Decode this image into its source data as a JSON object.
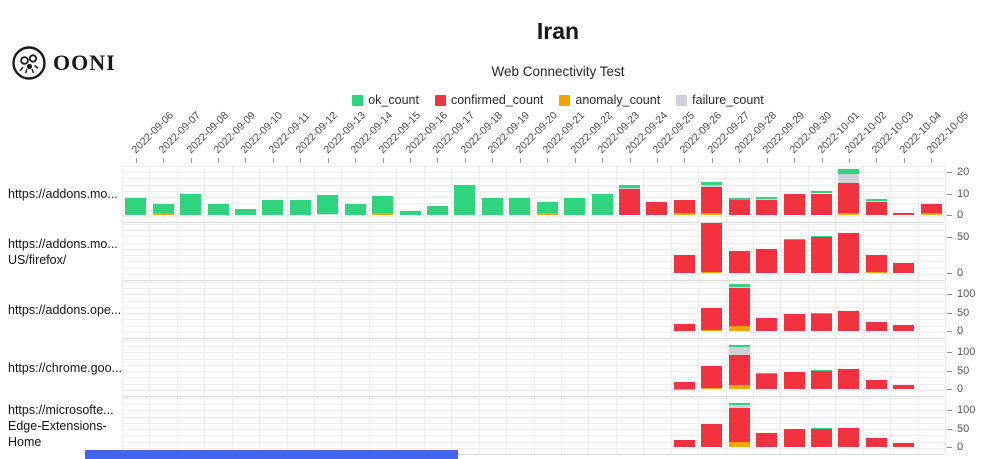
{
  "header": {
    "logo_text": "OONI",
    "title": "Iran",
    "subtitle": "Web Connectivity Test"
  },
  "legend": [
    {
      "label": "ok_count",
      "color": "#2ed47e"
    },
    {
      "label": "confirmed_count",
      "color": "#f2333f"
    },
    {
      "label": "anomaly_count",
      "color": "#f0a500"
    },
    {
      "label": "failure_count",
      "color": "#ccd3da"
    }
  ],
  "bottom_bar": {
    "color": "#4263eb"
  },
  "chart_data": {
    "type": "bar",
    "stacked": true,
    "grid": true,
    "legend_position": "top-center",
    "stack_order": [
      "anomaly_count",
      "confirmed_count",
      "failure_count",
      "ok_count"
    ],
    "colors": {
      "ok_count": "#2ed47e",
      "confirmed_count": "#f2333f",
      "anomaly_count": "#f0a500",
      "failure_count": "#ccd3da"
    },
    "x": [
      "2022-09-06",
      "2022-09-07",
      "2022-09-08",
      "2022-09-09",
      "2022-09-10",
      "2022-09-11",
      "2022-09-12",
      "2022-09-13",
      "2022-09-14",
      "2022-09-15",
      "2022-09-16",
      "2022-09-17",
      "2022-09-18",
      "2022-09-19",
      "2022-09-20",
      "2022-09-21",
      "2022-09-22",
      "2022-09-23",
      "2022-09-24",
      "2022-09-25",
      "2022-09-26",
      "2022-09-27",
      "2022-09-28",
      "2022-09-29",
      "2022-09-30",
      "2022-10-01",
      "2022-10-02",
      "2022-10-03",
      "2022-10-04",
      "2022-10-05"
    ],
    "rows": [
      {
        "label": "https://addons.mo...",
        "label_lines": [
          "https://addons.mo..."
        ],
        "y_ticks": [
          0,
          10,
          20
        ],
        "series": {
          "anomaly_count": [
            0,
            1,
            0,
            0,
            0,
            0,
            0,
            0,
            0,
            1,
            0,
            0,
            0,
            0,
            0,
            1,
            0,
            0,
            0,
            0,
            1,
            1,
            0,
            0,
            0,
            0,
            1,
            0,
            0,
            1
          ],
          "confirmed_count": [
            0,
            0,
            0,
            0,
            0,
            0,
            0,
            0,
            0,
            0,
            0,
            0,
            0,
            0,
            0,
            0,
            0,
            0,
            12,
            6,
            6,
            12,
            7,
            7,
            10,
            10,
            14,
            6,
            1,
            4
          ],
          "failure_count": [
            0,
            0,
            0,
            0,
            0,
            0,
            0,
            0.5,
            0,
            0,
            0,
            0,
            0,
            0,
            0,
            0,
            0,
            0,
            0.5,
            0,
            0,
            1,
            0,
            0.5,
            0,
            0,
            4,
            0.5,
            0,
            0
          ],
          "ok_count": [
            8,
            4,
            10,
            5,
            3,
            7,
            7,
            9,
            5,
            8,
            2,
            4,
            14,
            8,
            8,
            5,
            8,
            10,
            1.5,
            0,
            0,
            1.5,
            1,
            1,
            0,
            1,
            2.5,
            1,
            0,
            0
          ]
        }
      },
      {
        "label": "https://addons.mo... US/firefox/",
        "label_lines": [
          "https://addons.mo...",
          "US/firefox/"
        ],
        "y_ticks": [
          0,
          50
        ],
        "series": {
          "anomaly_count": [
            0,
            0,
            0,
            0,
            0,
            0,
            0,
            0,
            0,
            0,
            0,
            0,
            0,
            0,
            0,
            0,
            0,
            0,
            0,
            0,
            0,
            2,
            0,
            0,
            0,
            0,
            0,
            1,
            0,
            0
          ],
          "confirmed_count": [
            0,
            0,
            0,
            0,
            0,
            0,
            0,
            0,
            0,
            0,
            0,
            0,
            0,
            0,
            0,
            0,
            0,
            0,
            0,
            0,
            25,
            68,
            30,
            33,
            46,
            50,
            55,
            24,
            14,
            0
          ],
          "failure_count": [
            0,
            0,
            0,
            0,
            0,
            0,
            0,
            0,
            0,
            0,
            0,
            0,
            0,
            0,
            0,
            0,
            0,
            0,
            0,
            0,
            0,
            0,
            0,
            0,
            0,
            0,
            0,
            0,
            0,
            0
          ],
          "ok_count": [
            0,
            0,
            0,
            0,
            0,
            0,
            0,
            0,
            0,
            0,
            0,
            0,
            0,
            0,
            0,
            0,
            0,
            0,
            0,
            0,
            0,
            0,
            0,
            0,
            1.5,
            2,
            0,
            0,
            0,
            0
          ]
        }
      },
      {
        "label": "https://addons.ope...",
        "label_lines": [
          "https://addons.ope..."
        ],
        "y_ticks": [
          0,
          50,
          100
        ],
        "series": {
          "anomaly_count": [
            0,
            0,
            0,
            0,
            0,
            0,
            0,
            0,
            0,
            0,
            0,
            0,
            0,
            0,
            0,
            0,
            0,
            0,
            0,
            0,
            0,
            3,
            13,
            0,
            0,
            0,
            0,
            0,
            0,
            0
          ],
          "confirmed_count": [
            0,
            0,
            0,
            0,
            0,
            0,
            0,
            0,
            0,
            0,
            0,
            0,
            0,
            0,
            0,
            0,
            0,
            0,
            0,
            0,
            20,
            60,
            103,
            35,
            47,
            47,
            55,
            25,
            15,
            0
          ],
          "failure_count": [
            0,
            0,
            0,
            0,
            0,
            0,
            0,
            0,
            0,
            0,
            0,
            0,
            0,
            0,
            0,
            0,
            0,
            0,
            0,
            0,
            0,
            0,
            4,
            0,
            0,
            0,
            0,
            0,
            0,
            0
          ],
          "ok_count": [
            0,
            0,
            0,
            0,
            0,
            0,
            0,
            0,
            0,
            0,
            0,
            0,
            0,
            0,
            0,
            0,
            0,
            0,
            0,
            0,
            0,
            0,
            6,
            0,
            0,
            2,
            0,
            0,
            0,
            0
          ]
        }
      },
      {
        "label": "https://chrome.goo...",
        "label_lines": [
          "https://chrome.goo..."
        ],
        "y_ticks": [
          0,
          50,
          100
        ],
        "series": {
          "anomaly_count": [
            0,
            0,
            0,
            0,
            0,
            0,
            0,
            0,
            0,
            0,
            0,
            0,
            0,
            0,
            0,
            0,
            0,
            0,
            0,
            0,
            1,
            2,
            11,
            0,
            0,
            0,
            0,
            0,
            0,
            0
          ],
          "confirmed_count": [
            0,
            0,
            0,
            0,
            0,
            0,
            0,
            0,
            0,
            0,
            0,
            0,
            0,
            0,
            0,
            0,
            0,
            0,
            0,
            0,
            18,
            60,
            80,
            40,
            47,
            49,
            55,
            24,
            12,
            0
          ],
          "failure_count": [
            0,
            0,
            0,
            0,
            0,
            0,
            0,
            0,
            0,
            0,
            0,
            0,
            0,
            0,
            0,
            0,
            0,
            0,
            0,
            0,
            0,
            0,
            22,
            0,
            0,
            0,
            0,
            0,
            0,
            0
          ],
          "ok_count": [
            0,
            0,
            0,
            0,
            0,
            0,
            0,
            0,
            0,
            0,
            0,
            0,
            0,
            0,
            0,
            0,
            0,
            0,
            0,
            0,
            0,
            0,
            6,
            2,
            0,
            2,
            0,
            0,
            0,
            0
          ]
        }
      },
      {
        "label": "https://microsofte... Edge-Extensions-Home",
        "label_lines": [
          "https://microsofte...",
          "Edge-Extensions-",
          "Home"
        ],
        "y_ticks": [
          0,
          50,
          100
        ],
        "series": {
          "anomaly_count": [
            0,
            0,
            0,
            0,
            0,
            0,
            0,
            0,
            0,
            0,
            0,
            0,
            0,
            0,
            0,
            0,
            0,
            0,
            0,
            0,
            0,
            0,
            13,
            0,
            0,
            0,
            0,
            0,
            0,
            0
          ],
          "confirmed_count": [
            0,
            0,
            0,
            0,
            0,
            0,
            0,
            0,
            0,
            0,
            0,
            0,
            0,
            0,
            0,
            0,
            0,
            0,
            0,
            0,
            18,
            62,
            93,
            38,
            49,
            49,
            52,
            24,
            12,
            0
          ],
          "failure_count": [
            0,
            0,
            0,
            0,
            0,
            0,
            0,
            0,
            0,
            0,
            0,
            0,
            0,
            0,
            0,
            0,
            0,
            0,
            0,
            0,
            0,
            0,
            7,
            0,
            0,
            0,
            0,
            0,
            0,
            0
          ],
          "ok_count": [
            0,
            0,
            0,
            0,
            0,
            0,
            0,
            0,
            0,
            0,
            0,
            0,
            0,
            0,
            0,
            0,
            0,
            0,
            0,
            0,
            0,
            0,
            6,
            0,
            0,
            3,
            0,
            0,
            0,
            0
          ]
        }
      }
    ]
  }
}
